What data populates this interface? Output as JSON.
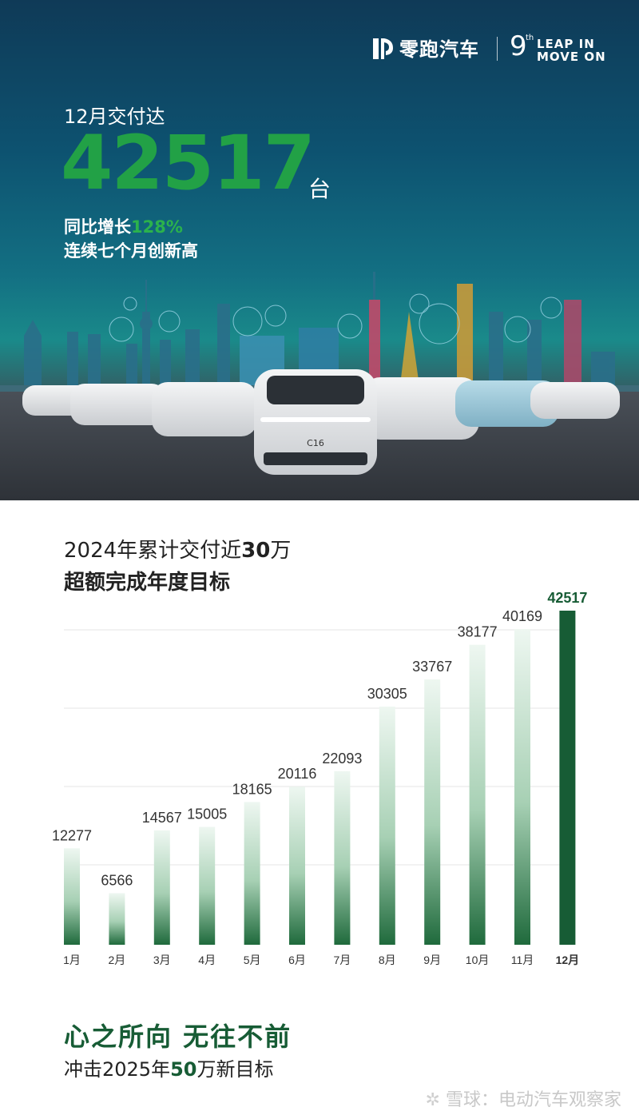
{
  "header": {
    "brand_name": "零跑汽车",
    "anniversary_number": "9",
    "anniversary_suffix": "th",
    "slogan_line1": "LEAP IN",
    "slogan_line2": "MOVE ON"
  },
  "hero": {
    "caption": "12月交付达",
    "number": "42517",
    "unit": "台",
    "yoy_prefix": "同比增长",
    "yoy_value": "128%",
    "streak": "连续七个月创新高",
    "car_badge": "C16"
  },
  "chart_section": {
    "title_part1": "2024年累计交付近",
    "title_highlight": "30",
    "title_part2": "万",
    "subtitle": "超额完成年度目标"
  },
  "chart_data": {
    "type": "bar",
    "categories": [
      "1月",
      "2月",
      "3月",
      "4月",
      "5月",
      "6月",
      "7月",
      "8月",
      "9月",
      "10月",
      "11月",
      "12月"
    ],
    "values": [
      12277,
      6566,
      14567,
      15005,
      18165,
      20116,
      22093,
      30305,
      33767,
      38177,
      40169,
      42517
    ],
    "ylim": [
      0,
      42517
    ],
    "grid": true,
    "legend": "none",
    "data_labels": true
  },
  "footer": {
    "title": "心之所向 无往不前",
    "sub_part1": "冲击2025年",
    "sub_highlight": "50",
    "sub_part2": "万新目标"
  },
  "watermark": {
    "logo_glyph": "✲",
    "text": "雪球：电动汽车观察家"
  },
  "colors": {
    "brand_green": "#22a146",
    "dark_green": "#175c35",
    "bar_light": "#e6f2ea"
  }
}
